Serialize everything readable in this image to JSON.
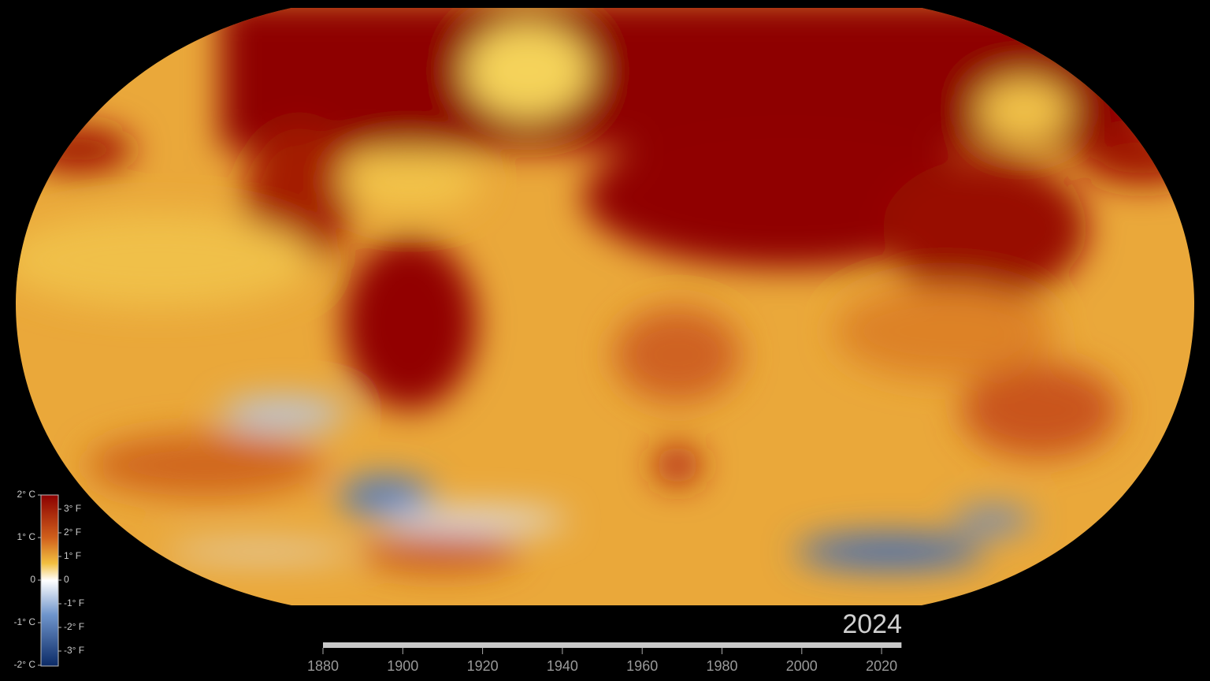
{
  "legend": {
    "celsius": [
      {
        "value": 2,
        "label": "2° C"
      },
      {
        "value": 1,
        "label": "1° C"
      },
      {
        "value": 0,
        "label": "0"
      },
      {
        "value": -1,
        "label": "-1° C"
      },
      {
        "value": -2,
        "label": "-2° C"
      }
    ],
    "fahrenheit": [
      {
        "value": 3,
        "label": "3° F"
      },
      {
        "value": 2,
        "label": "2° F"
      },
      {
        "value": 1,
        "label": "1° F"
      },
      {
        "value": 0,
        "label": "0"
      },
      {
        "value": -1,
        "label": "-1° F"
      },
      {
        "value": -2,
        "label": "-2° F"
      },
      {
        "value": -3,
        "label": "-3° F"
      }
    ]
  },
  "timeline": {
    "year": 2024,
    "ticks": [
      1880,
      1900,
      1920,
      1940,
      1960,
      1980,
      2000,
      2020
    ]
  }
}
